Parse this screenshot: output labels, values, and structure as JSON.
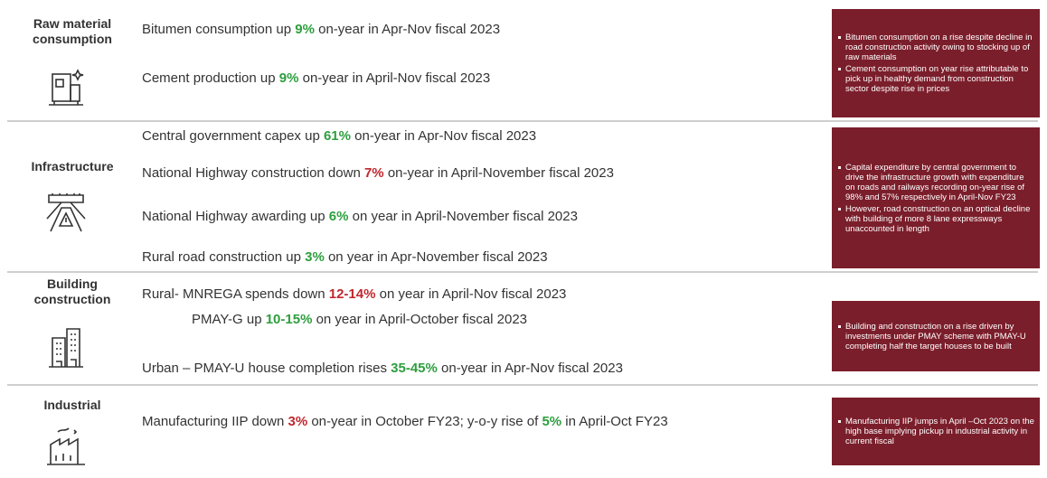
{
  "sections": [
    {
      "label": "Raw material consumption",
      "lines": [
        {
          "segments": [
            {
              "text": "Bitumen consumption up "
            },
            {
              "text": "9%",
              "color": "#2e9e3e"
            },
            {
              "text": " on-year in Apr-Nov fiscal 2023"
            }
          ]
        },
        {
          "segments": [
            {
              "text": "Cement production up "
            },
            {
              "text": "9%",
              "color": "#2e9e3e"
            },
            {
              "text": " on-year in April-Nov fiscal 2023"
            }
          ]
        }
      ],
      "notes": [
        "Bitumen consumption on a rise despite decline in road construction activity owing to stocking up of raw materials",
        "Cement consumption  on year rise attributable to pick up in healthy demand from construction sector despite rise in prices"
      ]
    },
    {
      "label": "Infrastructure",
      "lines": [
        {
          "segments": [
            {
              "text": "Central government capex up "
            },
            {
              "text": "61%",
              "color": "#2e9e3e"
            },
            {
              "text": " on-year in Apr-Nov fiscal 2023"
            }
          ]
        },
        {
          "segments": [
            {
              "text": "National Highway construction down "
            },
            {
              "text": "7%",
              "color": "#c1272d"
            },
            {
              "text": " on-year in April-November fiscal 2023"
            }
          ]
        },
        {
          "segments": [
            {
              "text": "National Highway awarding up "
            },
            {
              "text": "6%",
              "color": "#2e9e3e"
            },
            {
              "text": " on year in April-November fiscal 2023"
            }
          ]
        },
        {
          "segments": [
            {
              "text": "Rural road construction up "
            },
            {
              "text": "3%",
              "color": "#2e9e3e"
            },
            {
              "text": " on year in Apr-November fiscal 2023"
            }
          ]
        }
      ],
      "notes": [
        "Capital expenditure by central government to drive the infrastructure growth with expenditure on roads and railways recording on-year rise of 98% and 57% respectively in April-Nov FY23",
        "However, road construction on an optical decline with building of more 8 lane expressways unaccounted in length"
      ]
    },
    {
      "label": "Building construction",
      "lines": [
        {
          "segments": [
            {
              "text": "Rural- MNREGA spends down "
            },
            {
              "text": "12-14%",
              "color": "#c1272d"
            },
            {
              "text": " on year in April-Nov fiscal 2023"
            }
          ]
        },
        {
          "segments": [
            {
              "text": "PMAY-G up "
            },
            {
              "text": "10-15%",
              "color": "#2e9e3e"
            },
            {
              "text": " on year in April-October fiscal 2023"
            }
          ]
        },
        {
          "segments": [
            {
              "text": "Urban – PMAY-U house completion rises "
            },
            {
              "text": "35-45%",
              "color": "#2e9e3e"
            },
            {
              "text": " on-year in Apr-Nov fiscal 2023"
            }
          ]
        }
      ],
      "notes": [
        "Building and construction on a rise driven by investments  under PMAY scheme with PMAY-U completing half the target houses to be built"
      ]
    },
    {
      "label": "Industrial",
      "lines": [
        {
          "segments": [
            {
              "text": "Manufacturing IIP down "
            },
            {
              "text": "3%",
              "color": "#c1272d"
            },
            {
              "text": " on-year in October FY23; y-o-y rise of "
            },
            {
              "text": "5%",
              "color": "#2e9e3e"
            },
            {
              "text": " in April-Oct FY23"
            }
          ]
        }
      ],
      "notes": [
        "Manufacturing IIP jumps in April –Oct 2023 on the high base implying pickup in industrial activity in current fiscal"
      ]
    }
  ]
}
